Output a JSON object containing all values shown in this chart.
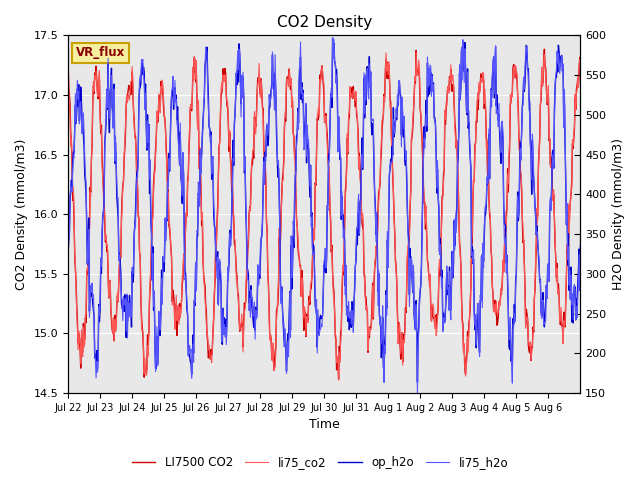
{
  "title": "CO2 Density",
  "xlabel": "Time",
  "ylabel_left": "CO2 Density (mmol/m3)",
  "ylabel_right": "H2O Density (mmol/m3)",
  "ylim_left": [
    14.5,
    17.5
  ],
  "ylim_right": [
    150,
    600
  ],
  "yticks_left": [
    14.5,
    15.0,
    15.5,
    16.0,
    16.5,
    17.0,
    17.5
  ],
  "yticks_right": [
    150,
    200,
    250,
    300,
    350,
    400,
    450,
    500,
    550,
    600
  ],
  "xtick_labels": [
    "Jul 22",
    "Jul 23",
    "Jul 24",
    "Jul 25",
    "Jul 26",
    "Jul 27",
    "Jul 28",
    "Jul 29",
    "Jul 30",
    "Jul 31",
    "Aug 1",
    "Aug 2",
    "Aug 3",
    "Aug 4",
    "Aug 5",
    "Aug 6"
  ],
  "n_days": 16,
  "plot_bg": "#e8e8e8",
  "fig_bg": "#ffffff",
  "vr_flux_label": "VR_flux",
  "vr_flux_bg": "#f5f0a0",
  "vr_flux_border": "#c8a000",
  "vr_flux_text_color": "#8b0000",
  "series": [
    {
      "label": "LI7500 CO2",
      "color": "#cc0000",
      "linewidth": 1.0,
      "axis": "left"
    },
    {
      "label": "li75_co2",
      "color": "#ff5555",
      "linewidth": 0.8,
      "axis": "left"
    },
    {
      "label": "op_h2o",
      "color": "#0000cc",
      "linewidth": 1.0,
      "axis": "right"
    },
    {
      "label": "li75_h2o",
      "color": "#5555ff",
      "linewidth": 0.8,
      "axis": "right"
    }
  ],
  "seed": 7
}
